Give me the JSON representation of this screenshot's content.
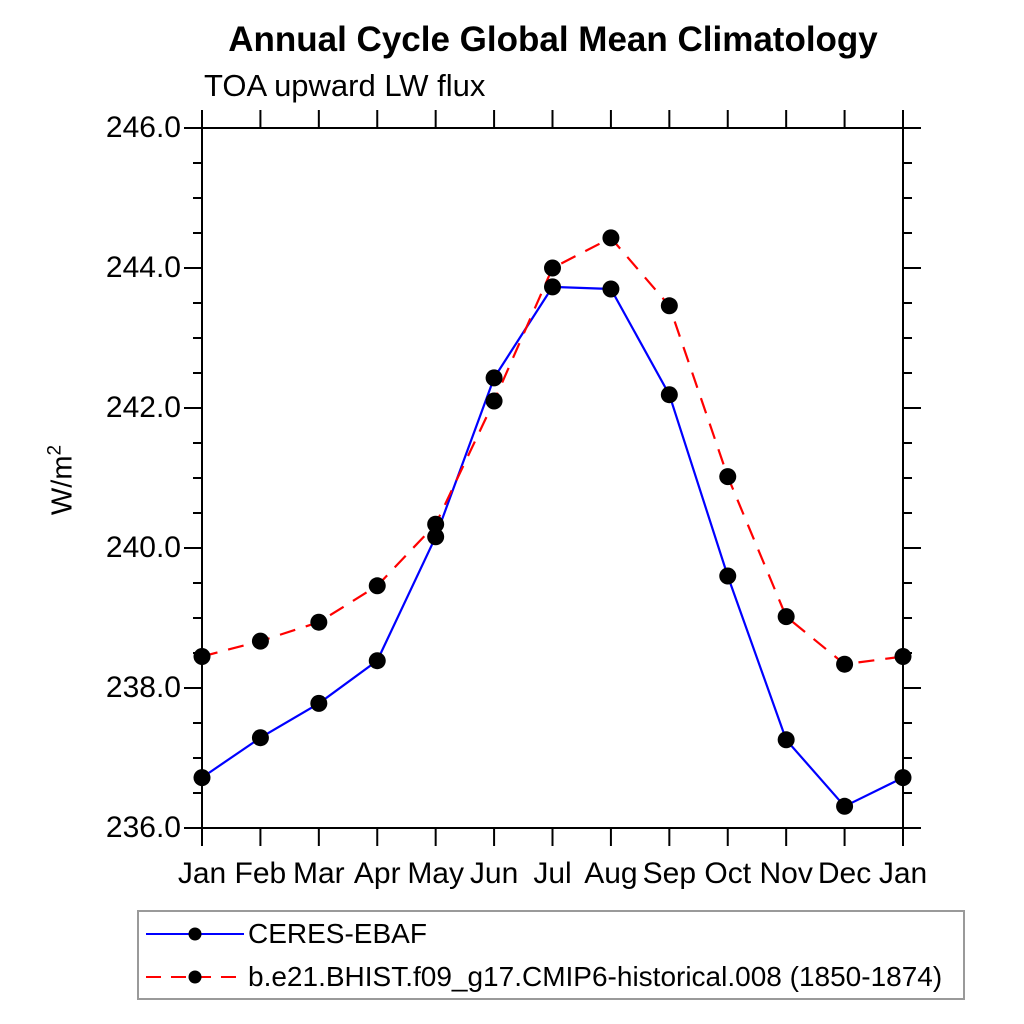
{
  "title": "Annual Cycle Global Mean Climatology",
  "subtitle": "TOA upward LW flux",
  "y_axis": {
    "label_base": "W/m",
    "label_exponent": "2"
  },
  "chart_data": {
    "type": "line",
    "title": "Annual Cycle Global Mean Climatology",
    "subtitle": "TOA upward LW flux",
    "ylabel": "W/m^2",
    "xlabel": "",
    "categories": [
      "Jan",
      "Feb",
      "Mar",
      "Apr",
      "May",
      "Jun",
      "Jul",
      "Aug",
      "Sep",
      "Oct",
      "Nov",
      "Dec",
      "Jan"
    ],
    "ylim": [
      236.0,
      246.0
    ],
    "ytick_step": 2.0,
    "yminor_step": 0.5,
    "ytick_labels": [
      "236.0",
      "238.0",
      "240.0",
      "242.0",
      "244.0",
      "246.0"
    ],
    "grid": false,
    "legend_position": "bottom-left",
    "marker": "circle",
    "marker_color": "#000000",
    "axis_color": "#000000",
    "series": [
      {
        "name": "CERES-EBAF",
        "color": "#0000ff",
        "line_style": "solid",
        "values": [
          236.72,
          237.29,
          237.78,
          238.39,
          240.16,
          242.43,
          243.73,
          243.7,
          242.19,
          239.6,
          237.26,
          236.31,
          236.72
        ]
      },
      {
        "name": "b.e21.BHIST.f09_g17.CMIP6-historical.008 (1850-1874)",
        "color": "#ff0000",
        "line_style": "dashed",
        "values": [
          238.45,
          238.67,
          238.94,
          239.46,
          240.34,
          242.1,
          244.0,
          244.43,
          243.46,
          241.02,
          239.02,
          238.34,
          238.45
        ]
      }
    ]
  }
}
